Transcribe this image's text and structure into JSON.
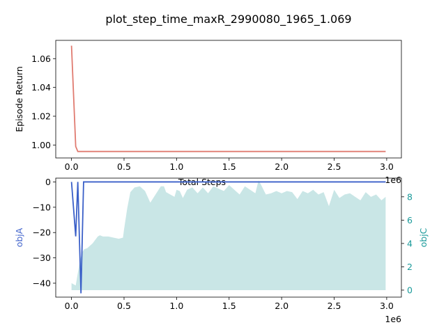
{
  "title": "plot_step_time_maxR_2990080_1965_1.069",
  "colors": {
    "return_line": "#e07b70",
    "objA_line": "#3a5fc8",
    "objA_label": "#4466cc",
    "objC_fill": "#b2dcdc",
    "objC_label": "#1a9a9a",
    "axis": "#000000"
  },
  "chart_data": [
    {
      "type": "line",
      "ylabel": "Episode Return",
      "xlabel": "Total Steps",
      "x_offset_label": "1e6",
      "xlim": [
        -150000,
        3140000
      ],
      "ylim": [
        0.991,
        1.0727
      ],
      "xticks": [
        0,
        500000,
        1000000,
        1500000,
        2000000,
        2500000,
        3000000
      ],
      "xtick_labels": [
        "0.0",
        "0.5",
        "1.0",
        "1.5",
        "2.0",
        "2.5",
        "3.0"
      ],
      "yticks": [
        1.0,
        1.02,
        1.04,
        1.06
      ],
      "ytick_labels": [
        "1.00",
        "1.02",
        "1.04",
        "1.06"
      ],
      "series": [
        {
          "x": [
            0,
            40000,
            60000,
            100000,
            500000,
            1000000,
            1500000,
            2000000,
            2500000,
            2990080
          ],
          "y": [
            1.069,
            0.999,
            0.9955,
            0.9955,
            0.9955,
            0.9955,
            0.9955,
            0.9955,
            0.9955,
            0.9955
          ]
        }
      ]
    },
    {
      "type": "line",
      "ylabel": "objA",
      "y2label": "objC",
      "x_offset_label": "1e6",
      "xlim": [
        -150000,
        3140000
      ],
      "ylim": [
        -45.5,
        1.5
      ],
      "y2lim": [
        -0.6,
        9.6
      ],
      "xticks": [
        0,
        500000,
        1000000,
        1500000,
        2000000,
        2500000,
        3000000
      ],
      "xtick_labels": [
        "0.0",
        "0.5",
        "1.0",
        "1.5",
        "2.0",
        "2.5",
        "3.0"
      ],
      "yticks": [
        0,
        -10,
        -20,
        -30,
        -40
      ],
      "ytick_labels": [
        "0",
        "−10",
        "−20",
        "−30",
        "−40"
      ],
      "y2ticks": [
        0,
        2,
        4,
        6,
        8
      ],
      "y2tick_labels": [
        "0",
        "2",
        "4",
        "6",
        "8"
      ],
      "objA": {
        "x": [
          0,
          40000,
          60000,
          90000,
          115000,
          130000,
          500000,
          1000000,
          1500000,
          2000000,
          2500000,
          2990080
        ],
        "y": [
          0,
          -21.5,
          0,
          -44,
          0,
          0,
          0,
          0,
          0,
          0,
          0,
          0
        ]
      },
      "objC": {
        "x": [
          0,
          40000,
          80000,
          100000,
          120000,
          150000,
          200000,
          250000,
          270000,
          300000,
          350000,
          400000,
          450000,
          490000,
          500000,
          530000,
          560000,
          600000,
          650000,
          700000,
          750000,
          800000,
          850000,
          880000,
          900000,
          940000,
          980000,
          1000000,
          1030000,
          1060000,
          1100000,
          1150000,
          1200000,
          1250000,
          1300000,
          1350000,
          1400000,
          1450000,
          1500000,
          1550000,
          1600000,
          1650000,
          1700000,
          1750000,
          1780000,
          1800000,
          1850000,
          1900000,
          1950000,
          2000000,
          2050000,
          2100000,
          2150000,
          2200000,
          2250000,
          2300000,
          2350000,
          2400000,
          2450000,
          2500000,
          2550000,
          2600000,
          2650000,
          2700000,
          2750000,
          2800000,
          2850000,
          2900000,
          2950000,
          2990080
        ],
        "y": [
          0.6,
          0.4,
          2.5,
          3.2,
          3.5,
          3.6,
          4.0,
          4.6,
          4.7,
          4.6,
          4.6,
          4.5,
          4.4,
          4.5,
          5.2,
          7.0,
          8.4,
          8.8,
          8.9,
          8.5,
          7.5,
          8.2,
          8.9,
          8.9,
          8.4,
          8.2,
          8.0,
          8.6,
          8.5,
          7.9,
          8.6,
          8.8,
          8.3,
          8.8,
          8.3,
          8.9,
          8.7,
          8.5,
          9.0,
          8.6,
          8.2,
          8.9,
          8.6,
          8.3,
          9.4,
          9.1,
          8.2,
          8.3,
          8.5,
          8.3,
          8.5,
          8.4,
          7.8,
          8.5,
          8.3,
          8.6,
          8.2,
          8.4,
          7.2,
          8.6,
          7.9,
          8.2,
          8.3,
          8.0,
          7.7,
          8.4,
          8.0,
          8.2,
          7.7,
          8.0
        ]
      }
    }
  ]
}
